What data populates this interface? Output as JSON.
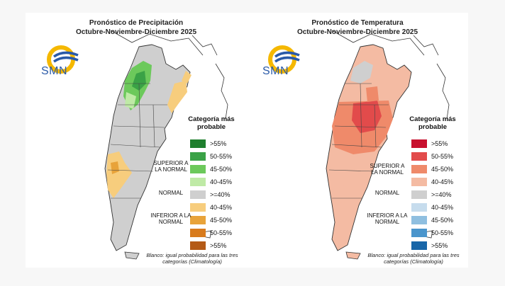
{
  "precip": {
    "title_line1": "Pronóstico de Precipitación",
    "title_line2": "Octubre-Noviembre-Diciembre 2025",
    "logo_text": "SMN",
    "legend_title_line1": "Categoría más",
    "legend_title_line2": "probable",
    "legend": [
      {
        "label": ">55%",
        "color": "#1f7f2e"
      },
      {
        "label": "50-55%",
        "color": "#3aa246"
      },
      {
        "label": "45-50%",
        "color": "#6cc95b"
      },
      {
        "label": "40-45%",
        "color": "#bfeaa6"
      },
      {
        "label": ">=40%",
        "color": "#cfcfcf"
      },
      {
        "label": "40-45%",
        "color": "#f7cd7d"
      },
      {
        "label": "45-50%",
        "color": "#e8a33a"
      },
      {
        "label": "50-55%",
        "color": "#d87b1d"
      },
      {
        "label": ">55%",
        "color": "#b45a16"
      }
    ],
    "cat_upper": "SUPERIOR A LA NORMAL",
    "cat_normal": "NORMAL",
    "cat_lower": "INFERIOR A LA NORMAL",
    "note": "Blanco: igual probabilidad para las tres categorías (Climatología)"
  },
  "temp": {
    "title_line1": "Pronóstico de Temperatura",
    "title_line2": "Octubre-Noviembre-Diciembre 2025",
    "logo_text": "SMN",
    "legend_title_line1": "Categoría más",
    "legend_title_line2": "probable",
    "legend": [
      {
        "label": ">55%",
        "color": "#c8102e"
      },
      {
        "label": "50-55%",
        "color": "#e24b4b"
      },
      {
        "label": "45-50%",
        "color": "#ef8a6a"
      },
      {
        "label": "40-45%",
        "color": "#f4bba3"
      },
      {
        "label": ">=40%",
        "color": "#cfcfcf"
      },
      {
        "label": "40-45%",
        "color": "#c6dced"
      },
      {
        "label": "45-50%",
        "color": "#8fbfe0"
      },
      {
        "label": "50-55%",
        "color": "#4a95cc"
      },
      {
        "label": ">55%",
        "color": "#1866a8"
      }
    ],
    "cat_upper": "SUPERIOR A LA NORMAL",
    "cat_normal": "NORMAL",
    "cat_lower": "INFERIOR A LA NORMAL",
    "note": "Blanco: igual probabilidad para las tres categorías (Climatología)"
  }
}
